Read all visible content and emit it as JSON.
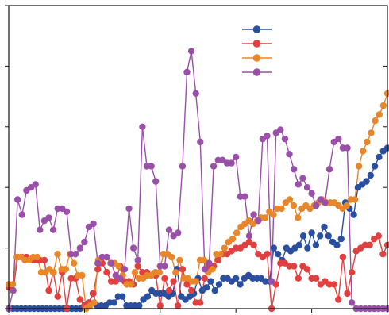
{
  "chart_data": {
    "type": "line",
    "title": "",
    "xlabel": "",
    "ylabel": "",
    "xlim": [
      0,
      100
    ],
    "ylim": [
      0,
      100
    ],
    "grid": false,
    "legend": {
      "placement": "top-right",
      "entries": [
        "",
        "",
        "",
        ""
      ]
    },
    "series": [
      {
        "name": "",
        "color": "#2a4fa0",
        "values": [
          0,
          0,
          0,
          0,
          0,
          0,
          0,
          0,
          0,
          0,
          0,
          0,
          0,
          0,
          0,
          0,
          0,
          0,
          1,
          2,
          5,
          1,
          1,
          1,
          2,
          2,
          4,
          4,
          1,
          1,
          1,
          1,
          3,
          4,
          6,
          5,
          5,
          5,
          4,
          5,
          13,
          4,
          3,
          4,
          5,
          10,
          6,
          7,
          9,
          6,
          8,
          10,
          10,
          9,
          10,
          8,
          10,
          11,
          10,
          10,
          10,
          9,
          9,
          20,
          18,
          16,
          20,
          19,
          20,
          21,
          24,
          20,
          25,
          21,
          24,
          27,
          24,
          22,
          21,
          23,
          35,
          33,
          31,
          40,
          41,
          42,
          44,
          47,
          50,
          52,
          53
        ]
      },
      {
        "name": "",
        "color": "#e04040",
        "values": [
          7,
          6,
          17,
          17,
          17,
          16,
          16,
          16,
          16,
          6,
          12,
          4,
          12,
          0,
          10,
          10,
          3,
          1,
          2,
          5,
          13,
          15,
          12,
          9,
          9,
          14,
          9,
          9,
          8,
          14,
          12,
          12,
          11,
          11,
          1,
          10,
          6,
          9,
          1,
          13,
          8,
          6,
          2,
          2,
          10,
          14,
          14,
          16,
          18,
          18,
          19,
          20,
          20,
          21,
          22,
          21,
          18,
          17,
          18,
          0,
          8,
          15,
          15,
          14,
          14,
          10,
          14,
          13,
          10,
          10,
          8,
          9,
          8,
          8,
          3,
          17,
          5,
          12,
          19,
          20,
          21,
          21,
          23,
          24,
          18,
          21
        ]
      },
      {
        "name": "",
        "color": "#e8862a",
        "values": [
          8,
          8,
          17,
          17,
          16,
          16,
          17,
          17,
          12,
          12,
          13,
          12,
          18,
          13,
          13,
          18,
          15,
          11,
          11,
          0,
          1,
          2,
          16,
          17,
          17,
          15,
          15,
          14,
          11,
          8,
          8,
          12,
          10,
          10,
          11,
          11,
          12,
          12,
          18,
          18,
          17,
          12,
          16,
          10,
          10,
          9,
          9,
          16,
          16,
          12,
          13,
          18,
          18,
          20,
          22,
          23,
          25,
          27,
          28,
          29,
          28,
          29,
          30,
          30,
          32,
          31,
          33,
          33,
          35,
          36,
          34,
          30,
          33,
          34,
          33,
          34,
          35,
          36,
          35,
          35,
          35,
          34,
          33,
          34,
          36,
          36,
          47,
          52,
          55,
          58,
          62,
          64,
          67,
          71
        ]
      },
      {
        "name": "",
        "color": "#9a4fa8",
        "values": [
          0,
          6,
          36,
          31,
          39,
          40,
          41,
          26,
          29,
          30,
          26,
          33,
          33,
          32,
          18,
          18,
          20,
          22,
          27,
          28,
          15,
          17,
          17,
          15,
          11,
          10,
          13,
          33,
          20,
          16,
          60,
          47,
          47,
          42,
          14,
          14,
          26,
          24,
          25,
          47,
          78,
          85,
          71,
          55,
          13,
          15,
          47,
          49,
          49,
          48,
          48,
          50,
          37,
          37,
          24,
          31,
          29,
          56,
          57,
          9,
          58,
          59,
          56,
          51,
          46,
          41,
          43,
          40,
          38,
          34,
          36,
          35,
          46,
          55,
          56,
          53,
          53,
          2,
          0,
          0,
          0,
          0,
          0,
          0,
          0,
          0
        ]
      }
    ]
  }
}
